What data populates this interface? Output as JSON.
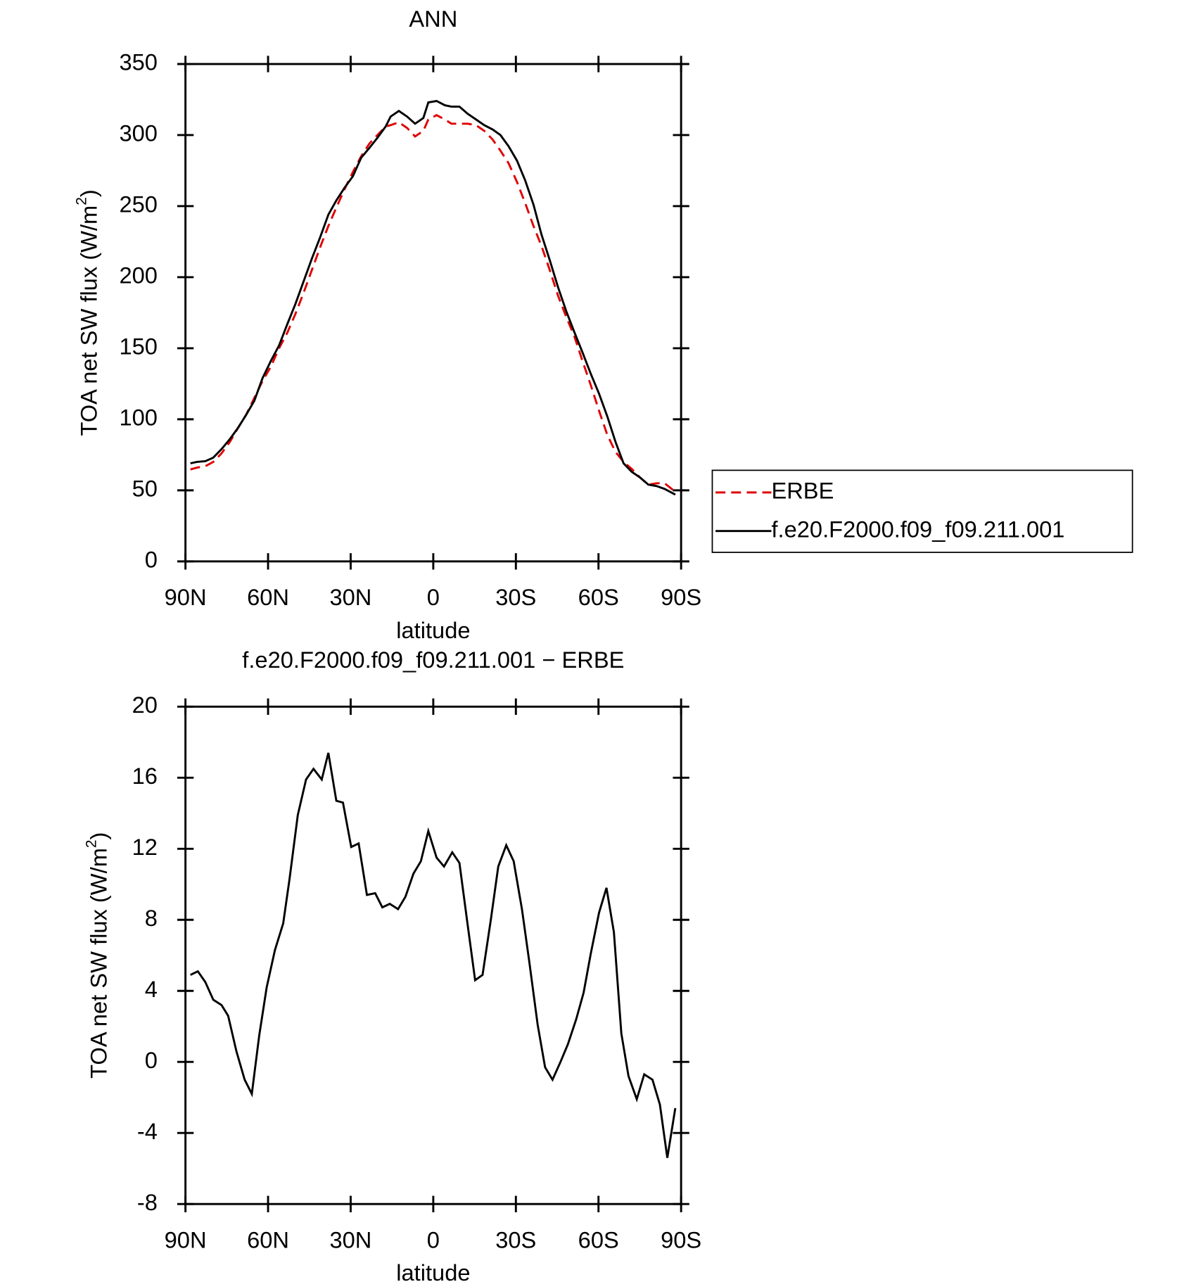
{
  "chart_data": [
    {
      "type": "line",
      "title": "ANN",
      "x_label": "latitude",
      "y_label": "TOA net SW flux (W/m²)",
      "x": [
        88.2,
        85.8,
        82.8,
        79.9,
        76.9,
        73.9,
        70.9,
        68.0,
        65.0,
        62.0,
        59.0,
        56.0,
        53.0,
        50.1,
        47.1,
        44.1,
        41.1,
        38.1,
        35.2,
        32.2,
        29.2,
        26.2,
        23.2,
        20.3,
        17.3,
        15.5,
        12.5,
        9.5,
        6.6,
        3.6,
        1.8,
        -1.2,
        -4.2,
        -6.6,
        -9.5,
        -12.5,
        -15.5,
        -18.5,
        -21.5,
        -24.4,
        -27.4,
        -30.4,
        -33.4,
        -36.4,
        -39.3,
        -42.3,
        -45.3,
        -48.3,
        -51.3,
        -54.2,
        -57.2,
        -60.2,
        -63.2,
        -66.2,
        -69.1,
        -72.1,
        -75.1,
        -78.1,
        -81.1,
        -84.0,
        -87.9
      ],
      "series": [
        {
          "name": "ERBE",
          "color": "#e00000",
          "linestyle": "dashed",
          "values": [
            64.7,
            66,
            67,
            70,
            76,
            84,
            94,
            103,
            115,
            127,
            137,
            150,
            161,
            174,
            189,
            205,
            221,
            236,
            249,
            262,
            274,
            285,
            294,
            300,
            306,
            307,
            309,
            305,
            299,
            303,
            311,
            314,
            311,
            308,
            308,
            308,
            307,
            303,
            297,
            289,
            280,
            267,
            252,
            236,
            222,
            205,
            187,
            172,
            158,
            141,
            124,
            106,
            89,
            77,
            70,
            65,
            59,
            54,
            55,
            55,
            49
          ]
        },
        {
          "name": "f.e20.F2000.f09_f09.211.001",
          "color": "#000000",
          "linestyle": "solid",
          "values": [
            69,
            70,
            70.5,
            73,
            79,
            86,
            94,
            103,
            113,
            129,
            141,
            152,
            167,
            181,
            197,
            213,
            228,
            244,
            254,
            263,
            271,
            284,
            291,
            298,
            306,
            313,
            317,
            313,
            308,
            312,
            323,
            324,
            321,
            320,
            320,
            315,
            311,
            307,
            304,
            300,
            292,
            282,
            268,
            251,
            230,
            212,
            193,
            176,
            161,
            147,
            132,
            118,
            102,
            84,
            69,
            63,
            59,
            54,
            53,
            51,
            47
          ]
        }
      ],
      "xlim": [
        90,
        -90
      ],
      "xticks": [
        {
          "value": 90,
          "label": "90N"
        },
        {
          "value": 60,
          "label": "60N"
        },
        {
          "value": 30,
          "label": "30N"
        },
        0,
        {
          "value": -30,
          "label": "30S"
        },
        {
          "value": -60,
          "label": "60S"
        },
        {
          "value": -90,
          "label": "90S"
        }
      ],
      "ylim": [
        0,
        350
      ],
      "yticks": [
        0,
        50,
        100,
        150,
        200,
        250,
        300,
        350
      ],
      "legend": "right"
    },
    {
      "type": "line",
      "title": "f.e20.F2000.f09_f09.211.001 − ERBE",
      "x_label": "latitude",
      "y_label": "TOA net SW flux (W/m²)",
      "x": [
        88.2,
        85.5,
        82.8,
        79.9,
        76.9,
        74.5,
        71.5,
        68.5,
        65.9,
        63.2,
        60.5,
        57.5,
        54.5,
        52.2,
        49.2,
        46.2,
        43.5,
        40.5,
        38.1,
        35.2,
        32.8,
        29.8,
        27.1,
        24.1,
        21.1,
        18.5,
        15.8,
        12.8,
        10.1,
        7.2,
        4.5,
        1.8,
        -1.2,
        -3.9,
        -6.9,
        -9.5,
        -12.5,
        -15.2,
        -17.9,
        -20.9,
        -23.6,
        -26.5,
        -29.2,
        -32.2,
        -34.9,
        -37.9,
        -40.6,
        -43.3,
        -46.2,
        -48.9,
        -51.9,
        -54.6,
        -57.2,
        -60.2,
        -62.9,
        -65.6,
        -68.3,
        -70.9,
        -73.9,
        -76.6,
        -79.6,
        -82.3,
        -85.0,
        -87.9
      ],
      "values": [
        4.9,
        5.1,
        4.5,
        3.5,
        3.2,
        2.6,
        0.6,
        -1,
        -1.8,
        1.5,
        4.2,
        6.3,
        7.8,
        10.3,
        13.9,
        15.9,
        16.5,
        15.9,
        17.4,
        14.7,
        14.6,
        12.1,
        12.3,
        9.4,
        9.5,
        8.7,
        8.9,
        8.6,
        9.3,
        10.6,
        11.3,
        13,
        11.5,
        11,
        11.8,
        11.2,
        7.7,
        4.6,
        4.9,
        8,
        11,
        12.2,
        11.3,
        8.6,
        5.6,
        2.1,
        -0.3,
        -1,
        0,
        1,
        2.4,
        3.9,
        6.1,
        8.4,
        9.8,
        7.3,
        1.6,
        -0.8,
        -2.1,
        -0.7,
        -1,
        -2.4,
        -5.4,
        -2.6
      ],
      "color": "#000000",
      "xlim": [
        90,
        -90
      ],
      "xticks": [
        {
          "value": 90,
          "label": "90N"
        },
        {
          "value": 60,
          "label": "60N"
        },
        {
          "value": 30,
          "label": "30N"
        },
        0,
        {
          "value": -30,
          "label": "30S"
        },
        {
          "value": -60,
          "label": "60S"
        },
        {
          "value": -90,
          "label": "90S"
        }
      ],
      "ylim": [
        -8,
        20
      ],
      "yticks": [
        -8,
        -4,
        0,
        4,
        8,
        12,
        16,
        20
      ]
    }
  ]
}
